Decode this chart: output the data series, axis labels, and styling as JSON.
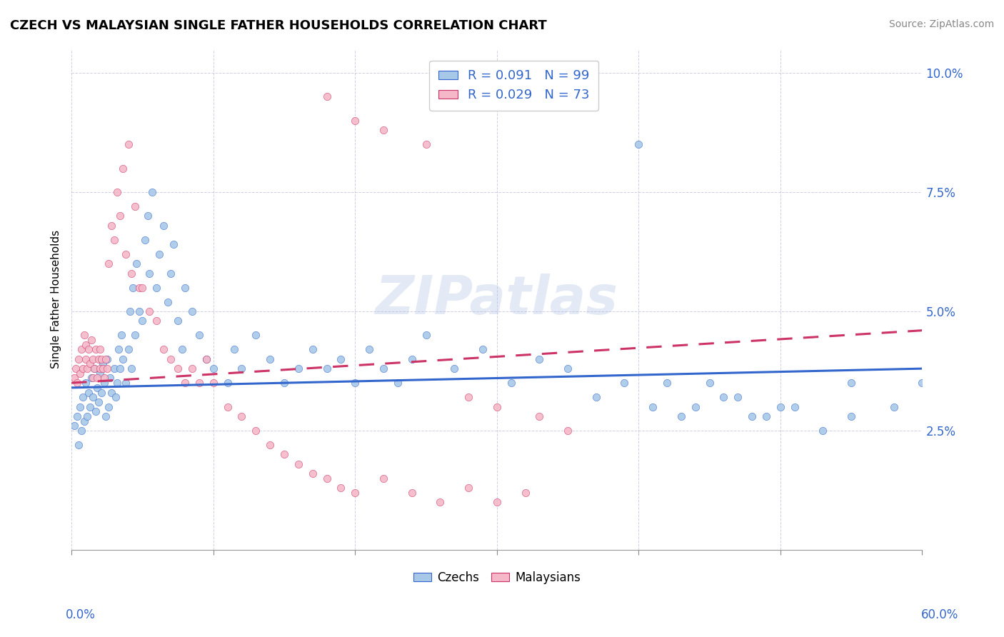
{
  "title": "CZECH VS MALAYSIAN SINGLE FATHER HOUSEHOLDS CORRELATION CHART",
  "source": "Source: ZipAtlas.com",
  "ylabel": "Single Father Households",
  "xlim": [
    0.0,
    0.6
  ],
  "ylim": [
    0.0,
    0.105
  ],
  "ytick_vals": [
    0.025,
    0.05,
    0.075,
    0.1
  ],
  "ytick_labels": [
    "2.5%",
    "5.0%",
    "7.5%",
    "10.0%"
  ],
  "legend_r_czech": "0.091",
  "legend_n_czech": "99",
  "legend_r_malay": "0.029",
  "legend_n_malay": "73",
  "color_czech": "#a8c8e8",
  "color_malay": "#f4b8c8",
  "line_color_czech": "#3366cc",
  "line_color_malay": "#cc3366",
  "watermark": "ZIPatlas",
  "czech_x": [
    0.002,
    0.004,
    0.005,
    0.006,
    0.007,
    0.008,
    0.009,
    0.01,
    0.011,
    0.012,
    0.013,
    0.014,
    0.015,
    0.016,
    0.017,
    0.018,
    0.019,
    0.02,
    0.021,
    0.022,
    0.023,
    0.024,
    0.025,
    0.026,
    0.027,
    0.028,
    0.03,
    0.031,
    0.032,
    0.033,
    0.034,
    0.035,
    0.036,
    0.038,
    0.04,
    0.041,
    0.042,
    0.043,
    0.045,
    0.046,
    0.048,
    0.05,
    0.052,
    0.054,
    0.055,
    0.057,
    0.06,
    0.062,
    0.065,
    0.068,
    0.07,
    0.072,
    0.075,
    0.078,
    0.08,
    0.085,
    0.09,
    0.095,
    0.1,
    0.11,
    0.115,
    0.12,
    0.13,
    0.14,
    0.15,
    0.16,
    0.17,
    0.18,
    0.19,
    0.2,
    0.21,
    0.22,
    0.23,
    0.24,
    0.25,
    0.27,
    0.29,
    0.31,
    0.33,
    0.35,
    0.37,
    0.39,
    0.41,
    0.43,
    0.45,
    0.47,
    0.49,
    0.51,
    0.53,
    0.55,
    0.4,
    0.42,
    0.44,
    0.46,
    0.48,
    0.5,
    0.55,
    0.58,
    0.6
  ],
  "czech_y": [
    0.026,
    0.028,
    0.022,
    0.03,
    0.025,
    0.032,
    0.027,
    0.035,
    0.028,
    0.033,
    0.03,
    0.036,
    0.032,
    0.038,
    0.029,
    0.034,
    0.031,
    0.037,
    0.033,
    0.039,
    0.035,
    0.028,
    0.04,
    0.03,
    0.036,
    0.033,
    0.038,
    0.032,
    0.035,
    0.042,
    0.038,
    0.045,
    0.04,
    0.035,
    0.042,
    0.05,
    0.038,
    0.055,
    0.045,
    0.06,
    0.05,
    0.048,
    0.065,
    0.07,
    0.058,
    0.075,
    0.055,
    0.062,
    0.068,
    0.052,
    0.058,
    0.064,
    0.048,
    0.042,
    0.055,
    0.05,
    0.045,
    0.04,
    0.038,
    0.035,
    0.042,
    0.038,
    0.045,
    0.04,
    0.035,
    0.038,
    0.042,
    0.038,
    0.04,
    0.035,
    0.042,
    0.038,
    0.035,
    0.04,
    0.045,
    0.038,
    0.042,
    0.035,
    0.04,
    0.038,
    0.032,
    0.035,
    0.03,
    0.028,
    0.035,
    0.032,
    0.028,
    0.03,
    0.025,
    0.028,
    0.085,
    0.035,
    0.03,
    0.032,
    0.028,
    0.03,
    0.035,
    0.03,
    0.035
  ],
  "malay_x": [
    0.002,
    0.003,
    0.004,
    0.005,
    0.006,
    0.007,
    0.008,
    0.009,
    0.01,
    0.01,
    0.011,
    0.012,
    0.013,
    0.014,
    0.015,
    0.015,
    0.016,
    0.017,
    0.018,
    0.019,
    0.02,
    0.02,
    0.021,
    0.022,
    0.023,
    0.024,
    0.025,
    0.026,
    0.028,
    0.03,
    0.032,
    0.034,
    0.036,
    0.038,
    0.04,
    0.042,
    0.045,
    0.048,
    0.05,
    0.055,
    0.06,
    0.065,
    0.07,
    0.075,
    0.08,
    0.085,
    0.09,
    0.095,
    0.1,
    0.11,
    0.12,
    0.13,
    0.14,
    0.15,
    0.16,
    0.17,
    0.18,
    0.19,
    0.2,
    0.22,
    0.24,
    0.26,
    0.28,
    0.3,
    0.32,
    0.18,
    0.2,
    0.22,
    0.25,
    0.28,
    0.3,
    0.33,
    0.35
  ],
  "malay_y": [
    0.036,
    0.038,
    0.035,
    0.04,
    0.037,
    0.042,
    0.038,
    0.045,
    0.04,
    0.043,
    0.038,
    0.042,
    0.039,
    0.044,
    0.036,
    0.04,
    0.038,
    0.042,
    0.036,
    0.04,
    0.038,
    0.042,
    0.04,
    0.038,
    0.036,
    0.04,
    0.038,
    0.06,
    0.068,
    0.065,
    0.075,
    0.07,
    0.08,
    0.062,
    0.085,
    0.058,
    0.072,
    0.055,
    0.055,
    0.05,
    0.048,
    0.042,
    0.04,
    0.038,
    0.035,
    0.038,
    0.035,
    0.04,
    0.035,
    0.03,
    0.028,
    0.025,
    0.022,
    0.02,
    0.018,
    0.016,
    0.015,
    0.013,
    0.012,
    0.015,
    0.012,
    0.01,
    0.013,
    0.01,
    0.012,
    0.095,
    0.09,
    0.088,
    0.085,
    0.032,
    0.03,
    0.028,
    0.025
  ],
  "czech_regline": [
    0.034,
    0.038
  ],
  "malay_regline": [
    0.035,
    0.046
  ]
}
